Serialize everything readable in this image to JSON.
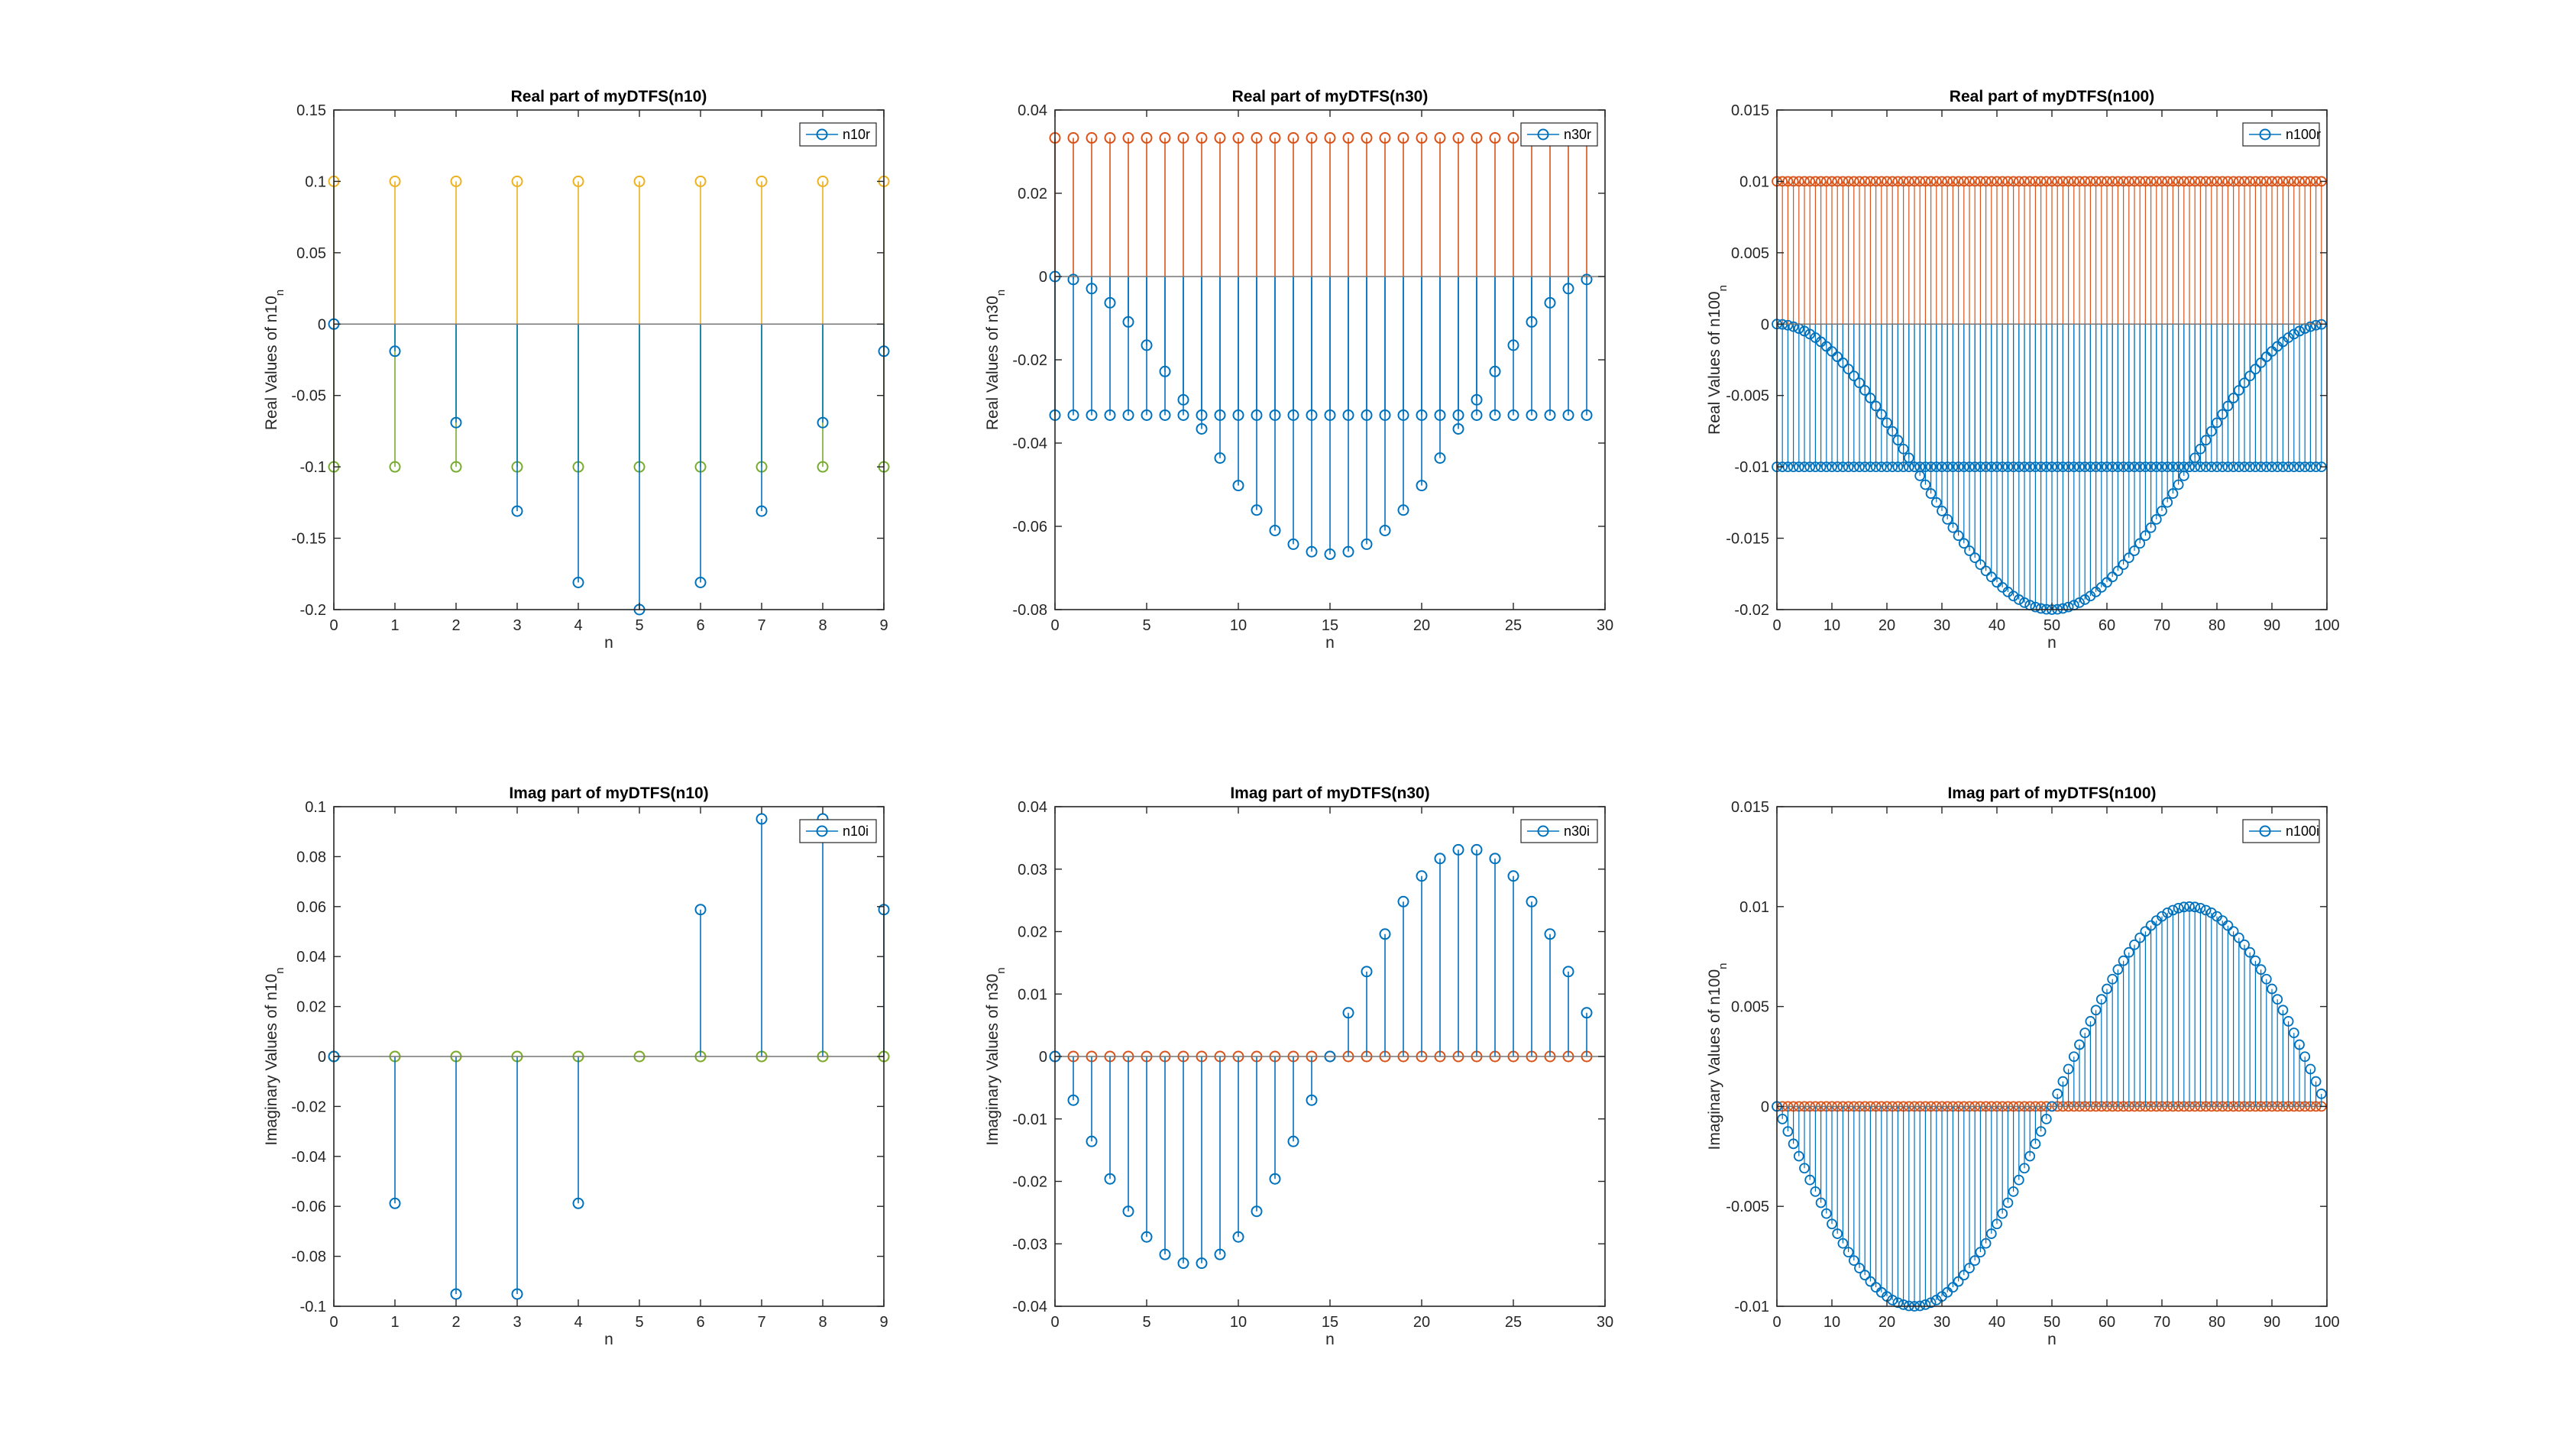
{
  "chart_data": [
    {
      "type": "stem",
      "title": "Real part of myDTFS(n10)",
      "xlabel": "n",
      "ylabel": "Real Values of n10",
      "ylabel_sub": "n",
      "xlim": [
        0,
        9
      ],
      "ylim": [
        -0.2,
        0.15
      ],
      "xticks": [
        0,
        1,
        2,
        3,
        4,
        5,
        6,
        7,
        8,
        9
      ],
      "yticks": [
        -0.2,
        -0.15,
        -0.1,
        -0.05,
        0,
        0.05,
        0.1,
        0.15
      ],
      "ytick_labels": [
        "-0.2",
        "-0.15",
        "-0.1",
        "-0.05",
        "0",
        "0.05",
        "0.1",
        "0.15"
      ],
      "legend": "n10r",
      "series": [
        {
          "color": "#EDB120",
          "x": [
            0,
            1,
            2,
            3,
            4,
            5,
            6,
            7,
            8,
            9
          ],
          "y": [
            0.1,
            0.1,
            0.1,
            0.1,
            0.1,
            0.1,
            0.1,
            0.1,
            0.1,
            0.1
          ]
        },
        {
          "color": "#77AC30",
          "x": [
            0,
            1,
            2,
            3,
            4,
            5,
            6,
            7,
            8,
            9
          ],
          "y": [
            -0.1,
            -0.1,
            -0.1,
            -0.1,
            -0.1,
            -0.1,
            -0.1,
            -0.1,
            -0.1,
            -0.1
          ]
        },
        {
          "name": "n10r",
          "color": "#0072BD",
          "x": [
            0,
            1,
            2,
            3,
            4,
            5,
            6,
            7,
            8,
            9
          ],
          "y": [
            0,
            -0.019,
            -0.069,
            -0.131,
            -0.181,
            -0.2,
            -0.181,
            -0.131,
            -0.069,
            -0.019
          ]
        }
      ]
    },
    {
      "type": "stem",
      "title": "Real part of myDTFS(n30)",
      "xlabel": "n",
      "ylabel": "Real Values of n30",
      "ylabel_sub": "n",
      "xlim": [
        0,
        30
      ],
      "ylim": [
        -0.08,
        0.04
      ],
      "xticks": [
        0,
        5,
        10,
        15,
        20,
        25,
        30
      ],
      "yticks": [
        -0.08,
        -0.06,
        -0.04,
        -0.02,
        0,
        0.02,
        0.04
      ],
      "ytick_labels": [
        "-0.08",
        "-0.06",
        "-0.04",
        "-0.02",
        "0",
        "0.02",
        "0.04"
      ],
      "legend": "n30r",
      "series": [
        {
          "color": "#D95319",
          "x": [
            0,
            1,
            2,
            3,
            4,
            5,
            6,
            7,
            8,
            9,
            10,
            11,
            12,
            13,
            14,
            15,
            16,
            17,
            18,
            19,
            20,
            21,
            22,
            23,
            24,
            25,
            26,
            27,
            28,
            29
          ],
          "y": [
            0.0333,
            0.0333,
            0.0333,
            0.0333,
            0.0333,
            0.0333,
            0.0333,
            0.0333,
            0.0333,
            0.0333,
            0.0333,
            0.0333,
            0.0333,
            0.0333,
            0.0333,
            0.0333,
            0.0333,
            0.0333,
            0.0333,
            0.0333,
            0.0333,
            0.0333,
            0.0333,
            0.0333,
            0.0333,
            0.0333,
            0.0333,
            0.0333,
            0.0333,
            0.0333
          ]
        },
        {
          "color": "#0072BD",
          "x": [
            0,
            1,
            2,
            3,
            4,
            5,
            6,
            7,
            8,
            9,
            10,
            11,
            12,
            13,
            14,
            15,
            16,
            17,
            18,
            19,
            20,
            21,
            22,
            23,
            24,
            25,
            26,
            27,
            28,
            29
          ],
          "y": [
            -0.0333,
            -0.0333,
            -0.0333,
            -0.0333,
            -0.0333,
            -0.0333,
            -0.0333,
            -0.0333,
            -0.0333,
            -0.0333,
            -0.0333,
            -0.0333,
            -0.0333,
            -0.0333,
            -0.0333,
            -0.0333,
            -0.0333,
            -0.0333,
            -0.0333,
            -0.0333,
            -0.0333,
            -0.0333,
            -0.0333,
            -0.0333,
            -0.0333,
            -0.0333,
            -0.0333,
            -0.0333,
            -0.0333,
            -0.0333
          ]
        },
        {
          "name": "n30r",
          "color": "#0072BD",
          "x": [
            0,
            1,
            2,
            3,
            4,
            5,
            6,
            7,
            8,
            9,
            10,
            11,
            12,
            13,
            14,
            15,
            16,
            17,
            18,
            19,
            20,
            21,
            22,
            23,
            24,
            25,
            26,
            27,
            28,
            29
          ],
          "y": [
            0,
            -0.0007,
            -0.0029,
            -0.0063,
            -0.0109,
            -0.0165,
            -0.0228,
            -0.0296,
            -0.0366,
            -0.0436,
            -0.0502,
            -0.0561,
            -0.061,
            -0.0643,
            -0.0661,
            -0.0667,
            -0.0661,
            -0.0643,
            -0.061,
            -0.0561,
            -0.0502,
            -0.0436,
            -0.0366,
            -0.0296,
            -0.0228,
            -0.0165,
            -0.0109,
            -0.0063,
            -0.0029,
            -0.0007
          ]
        }
      ]
    },
    {
      "type": "stem",
      "title": "Real part of myDTFS(n100)",
      "xlabel": "n",
      "ylabel": "Real Values of n100",
      "ylabel_sub": "n",
      "xlim": [
        0,
        100
      ],
      "ylim": [
        -0.02,
        0.015
      ],
      "xticks": [
        0,
        10,
        20,
        30,
        40,
        50,
        60,
        70,
        80,
        90,
        100
      ],
      "yticks": [
        -0.02,
        -0.015,
        -0.01,
        -0.005,
        0,
        0.005,
        0.01,
        0.015
      ],
      "ytick_labels": [
        "-0.02",
        "-0.015",
        "-0.01",
        "-0.005",
        "0",
        "0.005",
        "0.01",
        "0.015"
      ],
      "legend": "n100r",
      "gen": "real100",
      "series": []
    },
    {
      "type": "stem",
      "title": "Imag part of myDTFS(n10)",
      "xlabel": "n",
      "ylabel": "Imaginary Values of n10",
      "ylabel_sub": "n",
      "xlim": [
        0,
        9
      ],
      "ylim": [
        -0.1,
        0.1
      ],
      "xticks": [
        0,
        1,
        2,
        3,
        4,
        5,
        6,
        7,
        8,
        9
      ],
      "yticks": [
        -0.1,
        -0.08,
        -0.06,
        -0.04,
        -0.02,
        0,
        0.02,
        0.04,
        0.06,
        0.08,
        0.1
      ],
      "ytick_labels": [
        "-0.1",
        "-0.08",
        "-0.06",
        "-0.04",
        "-0.02",
        "0",
        "0.02",
        "0.04",
        "0.06",
        "0.08",
        "0.1"
      ],
      "legend": "n10i",
      "series": [
        {
          "color": "#EDB120",
          "x": [
            0,
            1,
            2,
            3,
            4,
            5,
            6,
            7,
            8,
            9
          ],
          "y": [
            0,
            0,
            0,
            0,
            0,
            0,
            0,
            0,
            0,
            0
          ]
        },
        {
          "color": "#77AC30",
          "x": [
            0,
            1,
            2,
            3,
            4,
            5,
            6,
            7,
            8,
            9
          ],
          "y": [
            0,
            0,
            0,
            0,
            0,
            0,
            0,
            0,
            0,
            0
          ]
        },
        {
          "name": "n10i",
          "color": "#0072BD",
          "x": [
            0,
            1,
            2,
            3,
            4,
            6,
            7,
            8,
            9
          ],
          "y": [
            0,
            -0.0588,
            -0.0951,
            -0.0951,
            -0.0588,
            0.0588,
            0.0951,
            0.0951,
            0.0588
          ]
        }
      ]
    },
    {
      "type": "stem",
      "title": "Imag part of myDTFS(n30)",
      "xlabel": "n",
      "ylabel": "Imaginary Values of n30",
      "ylabel_sub": "n",
      "xlim": [
        0,
        30
      ],
      "ylim": [
        -0.04,
        0.04
      ],
      "xticks": [
        0,
        5,
        10,
        15,
        20,
        25,
        30
      ],
      "yticks": [
        -0.04,
        -0.03,
        -0.02,
        -0.01,
        0,
        0.01,
        0.02,
        0.03,
        0.04
      ],
      "ytick_labels": [
        "-0.04",
        "-0.03",
        "-0.02",
        "-0.01",
        "0",
        "0.01",
        "0.02",
        "0.03",
        "0.04"
      ],
      "legend": "n30i",
      "series": [
        {
          "color": "#D95319",
          "x": [
            0,
            1,
            2,
            3,
            4,
            5,
            6,
            7,
            8,
            9,
            10,
            11,
            12,
            13,
            14,
            15,
            16,
            17,
            18,
            19,
            20,
            21,
            22,
            23,
            24,
            25,
            26,
            27,
            28,
            29
          ],
          "y": [
            0,
            0,
            0,
            0,
            0,
            0,
            0,
            0,
            0,
            0,
            0,
            0,
            0,
            0,
            0,
            0,
            0,
            0,
            0,
            0,
            0,
            0,
            0,
            0,
            0,
            0,
            0,
            0,
            0,
            0
          ]
        },
        {
          "name": "n30i",
          "color": "#0072BD",
          "x": [
            0,
            1,
            2,
            3,
            4,
            5,
            6,
            7,
            8,
            9,
            10,
            11,
            12,
            13,
            14,
            15,
            16,
            17,
            18,
            19,
            20,
            21,
            22,
            23,
            24,
            25,
            26,
            27,
            28,
            29
          ],
          "y": [
            0,
            -0.007,
            -0.0136,
            -0.0196,
            -0.0248,
            -0.0289,
            -0.0317,
            -0.0331,
            -0.0331,
            -0.0317,
            -0.0289,
            -0.0248,
            -0.0196,
            -0.0136,
            -0.007,
            0,
            0.007,
            0.0136,
            0.0196,
            0.0248,
            0.0289,
            0.0317,
            0.0331,
            0.0331,
            0.0317,
            0.0289,
            0.0248,
            0.0196,
            0.0136,
            0.007
          ]
        }
      ]
    },
    {
      "type": "stem",
      "title": "Imag part of myDTFS(n100)",
      "xlabel": "n",
      "ylabel": "Imaginary Values of n100",
      "ylabel_sub": "n",
      "xlim": [
        0,
        100
      ],
      "ylim": [
        -0.01,
        0.015
      ],
      "xticks": [
        0,
        10,
        20,
        30,
        40,
        50,
        60,
        70,
        80,
        90,
        100
      ],
      "yticks": [
        -0.01,
        -0.005,
        0,
        0.005,
        0.01,
        0.015
      ],
      "ytick_labels": [
        "-0.01",
        "-0.005",
        "0",
        "0.005",
        "0.01",
        "0.015"
      ],
      "legend": "n100i",
      "gen": "imag100",
      "series": []
    }
  ]
}
